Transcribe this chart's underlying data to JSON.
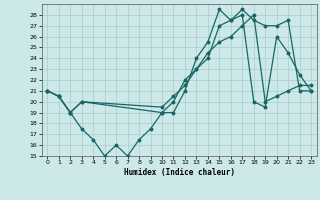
{
  "title": "",
  "xlabel": "Humidex (Indice chaleur)",
  "ylabel": "",
  "xlim": [
    -0.5,
    23.5
  ],
  "ylim": [
    15,
    29
  ],
  "yticks": [
    15,
    16,
    17,
    18,
    19,
    20,
    21,
    22,
    23,
    24,
    25,
    26,
    27,
    28
  ],
  "xticks": [
    0,
    1,
    2,
    3,
    4,
    5,
    6,
    7,
    8,
    9,
    10,
    11,
    12,
    13,
    14,
    15,
    16,
    17,
    18,
    19,
    20,
    21,
    22,
    23
  ],
  "background_color": "#cce8e8",
  "grid_color": "#aacccc",
  "line_color": "#1a6666",
  "curve1_x": [
    0,
    1,
    2,
    3,
    4,
    5,
    6,
    7,
    8,
    9,
    10,
    11,
    12,
    13,
    14,
    15,
    16,
    17,
    18,
    19,
    20,
    21,
    22,
    23
  ],
  "curve1_y": [
    21.0,
    20.5,
    19.0,
    17.5,
    16.5,
    15.0,
    16.0,
    15.0,
    16.5,
    17.5,
    19.0,
    19.0,
    21.0,
    24.0,
    25.5,
    28.5,
    27.5,
    28.0,
    20.0,
    19.5,
    26.0,
    24.5,
    22.5,
    21.0
  ],
  "curve2_x": [
    0,
    1,
    2,
    3,
    10,
    11,
    12,
    13,
    14,
    15,
    16,
    17,
    18,
    19,
    20,
    21,
    22,
    23
  ],
  "curve2_y": [
    21.0,
    20.5,
    19.0,
    20.0,
    19.0,
    20.0,
    22.0,
    23.0,
    24.0,
    27.0,
    27.5,
    28.5,
    27.5,
    27.0,
    27.0,
    27.5,
    21.0,
    21.0
  ],
  "curve3_x": [
    0,
    1,
    2,
    3,
    10,
    11,
    12,
    13,
    14,
    15,
    16,
    17,
    18,
    19,
    20,
    21,
    22,
    23
  ],
  "curve3_y": [
    21.0,
    20.5,
    19.0,
    20.0,
    19.5,
    20.5,
    21.5,
    23.0,
    24.5,
    25.5,
    26.0,
    27.0,
    28.0,
    20.0,
    20.5,
    21.0,
    21.5,
    21.5
  ]
}
